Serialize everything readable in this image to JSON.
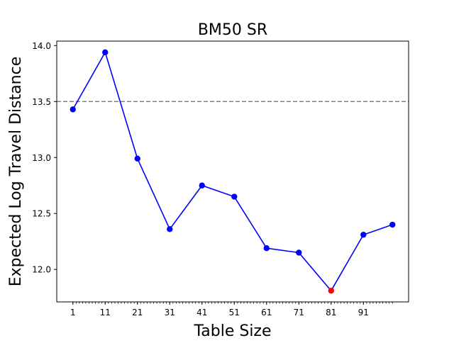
{
  "chart_data": {
    "type": "line",
    "title": "BM50 SR",
    "xlabel": "Table Size",
    "ylabel": "Expected Log Travel Distance",
    "x": [
      1,
      11,
      21,
      31,
      41,
      51,
      61,
      71,
      81,
      91,
      100
    ],
    "values": [
      13.43,
      13.94,
      12.99,
      12.36,
      12.75,
      12.65,
      12.19,
      12.15,
      11.81,
      12.31,
      12.4
    ],
    "highlight_index": 8,
    "xlim": [
      -4,
      105
    ],
    "ylim": [
      11.71,
      14.04
    ],
    "x_ticks": [
      1,
      11,
      21,
      31,
      41,
      51,
      61,
      71,
      81,
      91
    ],
    "x_minor_ticks_every": 1,
    "y_ticks": [
      12.0,
      12.5,
      13.0,
      13.5,
      14.0
    ],
    "y_tick_labels": [
      "12.0",
      "12.5",
      "13.0",
      "13.5",
      "14.0"
    ],
    "reference_line": {
      "y": 13.5,
      "style": "dashed",
      "color": "#808080"
    },
    "grid": false,
    "colors": {
      "line": "#0000ff",
      "marker": "#0000ff",
      "highlight": "#ff0000"
    }
  }
}
